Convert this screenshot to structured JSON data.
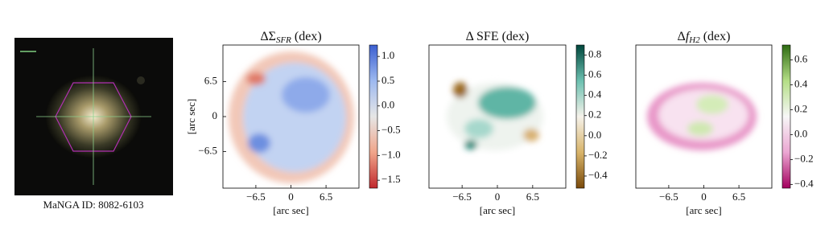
{
  "image_panel": {
    "caption": "MaNGA ID: 8082-6103"
  },
  "chart_data": [
    {
      "type": "heatmap",
      "title_parts": [
        {
          "text": "ΔΣ"
        },
        {
          "text": "SFR",
          "style": "sub"
        },
        {
          "text": "(dex)"
        }
      ],
      "xlabel": "[arc sec]",
      "ylabel": "[arc sec]",
      "xlim": [
        -12.6,
        12.6
      ],
      "ylim": [
        -13.3,
        13.3
      ],
      "xticks": [
        {
          "value": -6.5,
          "label": "−6.5"
        },
        0,
        6.5
      ],
      "yticks": [
        {
          "value": -6.5,
          "label": "−6.5"
        },
        0,
        6.5
      ],
      "clim": [
        -1.66,
        1.23
      ],
      "cticks": [
        {
          "value": -1.5,
          "label": "−1.5"
        },
        {
          "value": -1,
          "label": "−1.0"
        },
        {
          "value": -0.5,
          "label": "−0.5"
        },
        {
          "value": 0,
          "label": "0.0"
        },
        0.5,
        {
          "value": 1,
          "label": "1.0"
        }
      ],
      "cmap_colors": [
        "#c0282d",
        "#f0a58a",
        "#e6e6e6",
        "#9db9f0",
        "#3b5fd0"
      ]
    },
    {
      "type": "heatmap",
      "title_parts": [
        {
          "text": "Δ SFE (dex)"
        }
      ],
      "xlabel": "[arc sec]",
      "xlim": [
        -12.6,
        12.6
      ],
      "xticks": [
        {
          "value": -6.5,
          "label": "−6.5"
        },
        0,
        6.5
      ],
      "clim": [
        -0.52,
        0.9
      ],
      "cticks": [
        {
          "value": -0.4,
          "label": "−0.4"
        },
        {
          "value": -0.2,
          "label": "−0.2"
        },
        {
          "value": 0,
          "label": "0.0"
        },
        0.2,
        0.4,
        0.6,
        0.8
      ],
      "cmap_colors": [
        "#7a4a0a",
        "#d8b46a",
        "#f5f2ea",
        "#6cc0b0",
        "#00463c"
      ]
    },
    {
      "type": "heatmap",
      "title_parts": [
        {
          "text": "Δ"
        },
        {
          "text": "f",
          "style": "italic"
        },
        {
          "text": "H2",
          "style": "sub"
        },
        {
          "text": "(dex)"
        }
      ],
      "xlabel": "[arc sec]",
      "xlim": [
        -12.6,
        12.6
      ],
      "xticks": [
        {
          "value": -6.5,
          "label": "−6.5"
        },
        0,
        6.5
      ],
      "clim": [
        -0.43,
        0.72
      ],
      "cticks": [
        {
          "value": -0.4,
          "label": "−0.4"
        },
        {
          "value": -0.2,
          "label": "−0.2"
        },
        {
          "value": 0,
          "label": "0.0"
        },
        0.2,
        0.4,
        0.6
      ],
      "cmap_colors": [
        "#a3005e",
        "#eba6d2",
        "#f7f7f7",
        "#b4de86",
        "#2e6b12"
      ]
    }
  ]
}
